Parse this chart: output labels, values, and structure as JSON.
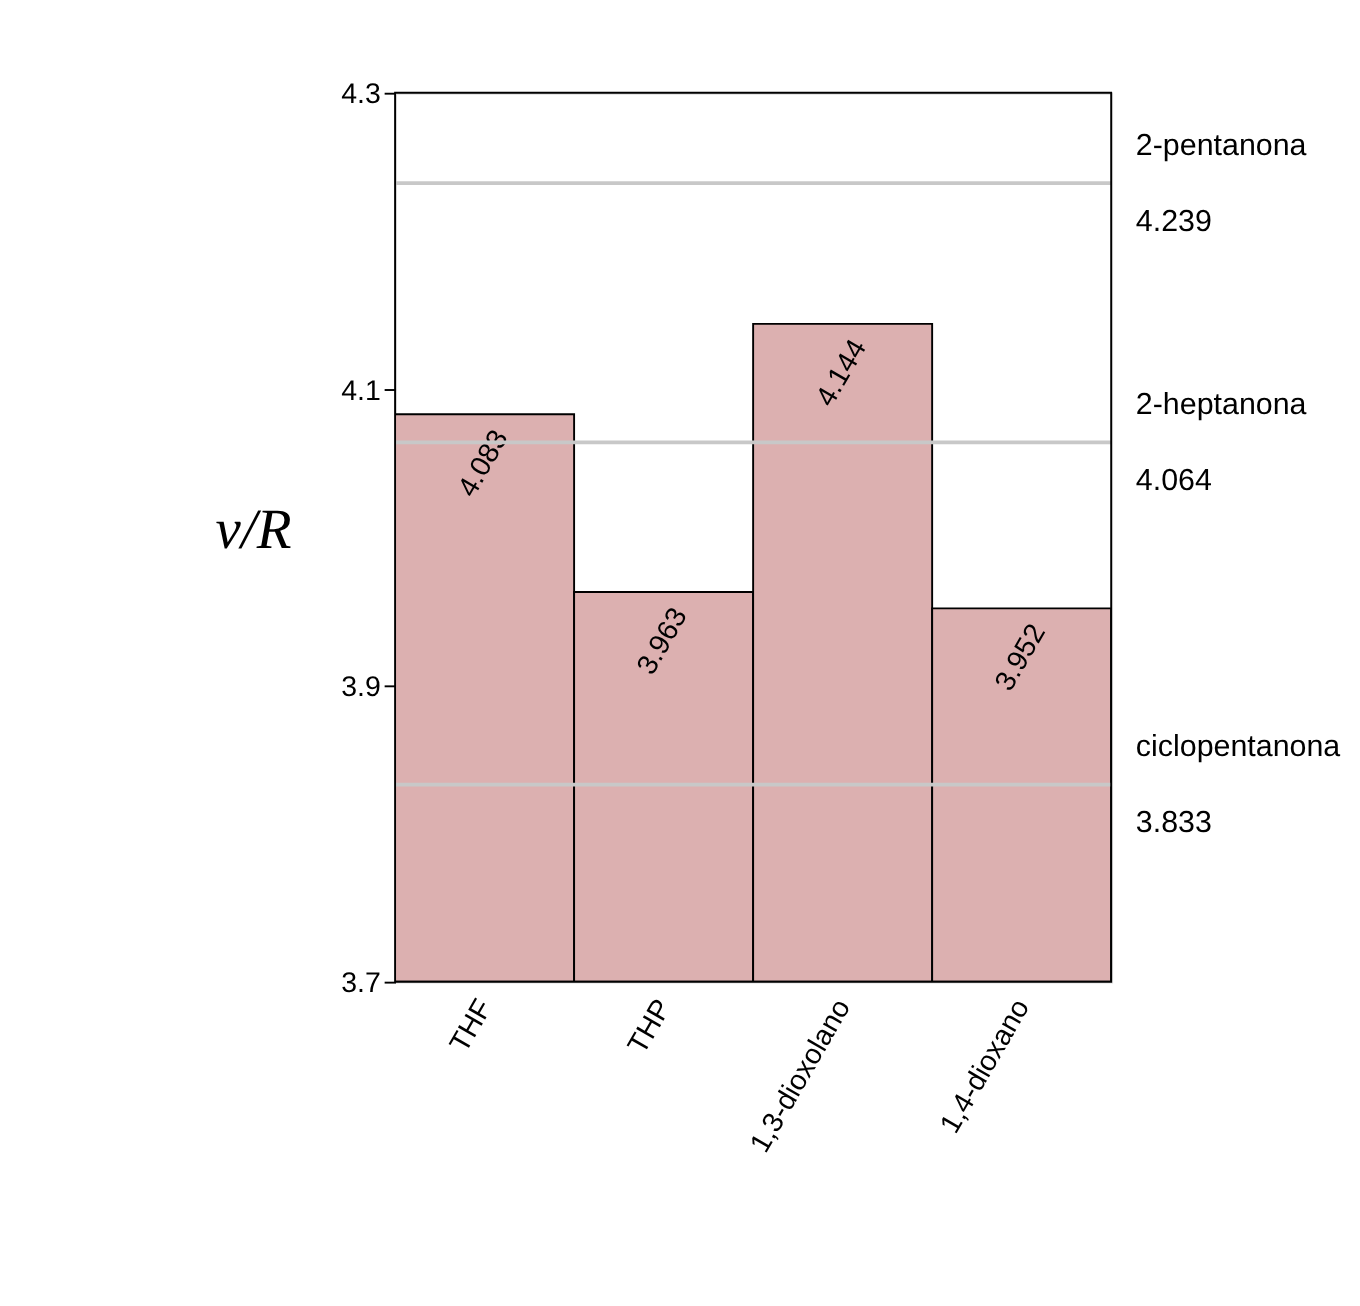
{
  "chart_data": {
    "type": "bar",
    "ylabel": "ν/R",
    "categories": [
      "THF",
      "THP",
      "1,3-dioxolano",
      "1,4-dioxano"
    ],
    "values": [
      4.083,
      3.963,
      4.144,
      3.952
    ],
    "color": "#dcb0b0",
    "data_labels": true,
    "grid": false,
    "ylim": [
      3.7,
      4.3
    ],
    "yticks": [
      3.7,
      3.9,
      4.1,
      4.3
    ],
    "ref_lines": [
      {
        "axis": "y",
        "value": 4.239,
        "label": "2-pentanona\n4.239",
        "color": "#c8c8c8"
      },
      {
        "axis": "y",
        "value": 4.064,
        "label": "2-heptanona\n4.064",
        "color": "#c8c8c8"
      },
      {
        "axis": "y",
        "value": 3.833,
        "label": "ciclopentanona\n3.833",
        "color": "#c8c8c8"
      }
    ]
  }
}
